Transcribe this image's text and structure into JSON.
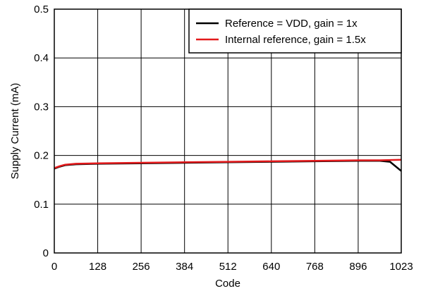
{
  "chart_data": {
    "type": "line",
    "title": "",
    "xlabel": "Code",
    "ylabel": "Supply Current (mA)",
    "xlim": [
      0,
      1023
    ],
    "ylim": [
      0,
      0.5
    ],
    "xticks": [
      0,
      128,
      256,
      384,
      512,
      640,
      768,
      896,
      1023
    ],
    "xtick_labels": [
      "0",
      "128",
      "256",
      "384",
      "512",
      "640",
      "768",
      "896",
      "1023"
    ],
    "yticks": [
      0,
      0.1,
      0.2,
      0.3,
      0.4,
      0.5
    ],
    "ytick_labels": [
      "0",
      "0.1",
      "0.2",
      "0.3",
      "0.4",
      "0.5"
    ],
    "grid": true,
    "legend_position": "top-right",
    "series": [
      {
        "name": "Reference = VDD, gain = 1x",
        "color": "#000000",
        "x": [
          0,
          16,
          32,
          64,
          128,
          256,
          384,
          512,
          640,
          768,
          896,
          960,
          990,
          1023
        ],
        "y": [
          0.173,
          0.177,
          0.18,
          0.182,
          0.183,
          0.184,
          0.185,
          0.186,
          0.187,
          0.188,
          0.189,
          0.189,
          0.187,
          0.168
        ]
      },
      {
        "name": "Internal reference, gain = 1.5x",
        "color": "#e31a1c",
        "x": [
          0,
          16,
          32,
          64,
          128,
          256,
          384,
          512,
          640,
          768,
          896,
          960,
          1023
        ],
        "y": [
          0.174,
          0.178,
          0.181,
          0.183,
          0.184,
          0.185,
          0.186,
          0.187,
          0.188,
          0.189,
          0.19,
          0.19,
          0.191
        ]
      }
    ]
  }
}
